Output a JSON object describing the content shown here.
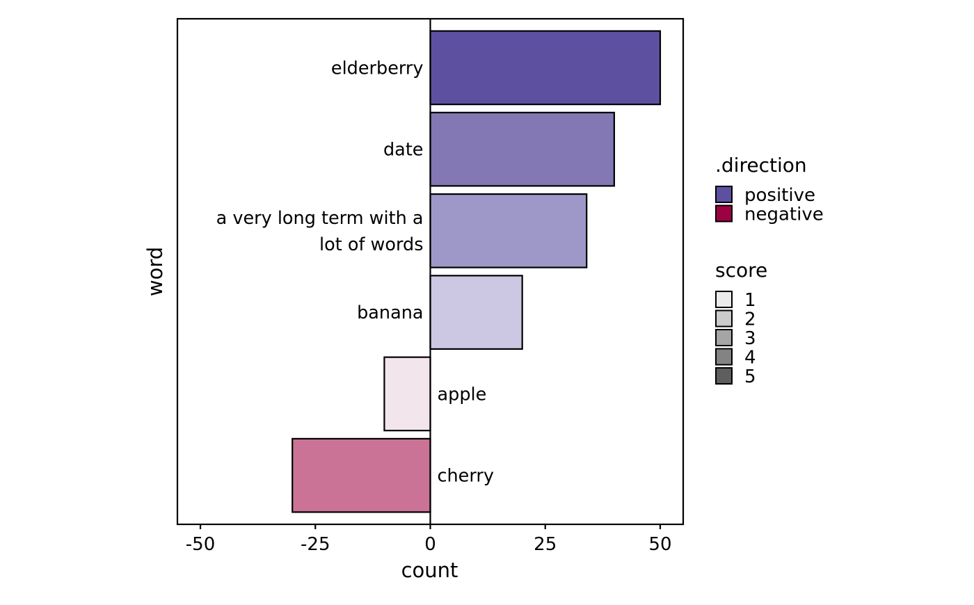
{
  "chart_data": {
    "type": "bar",
    "orientation": "horizontal",
    "xlabel": "count",
    "ylabel": "word",
    "xlim": [
      -55,
      55
    ],
    "xticks": [
      -50,
      -25,
      0,
      25,
      50
    ],
    "xtick_labels": [
      "-50",
      "-25",
      "0",
      "25",
      "50"
    ],
    "grid": false,
    "categories": [
      {
        "label": "elderberry",
        "value": 50,
        "direction": "positive",
        "score": 5
      },
      {
        "label": "date",
        "value": 40,
        "direction": "positive",
        "score": 4
      },
      {
        "label": "a very long term with a lot of words",
        "label_lines": [
          "a very long term with a",
          "lot of words"
        ],
        "value": 34,
        "direction": "positive",
        "score": 3
      },
      {
        "label": "banana",
        "value": 20,
        "direction": "positive",
        "score": 2
      },
      {
        "label": "apple",
        "value": -10,
        "direction": "negative",
        "score": 1
      },
      {
        "label": "cherry",
        "value": -30,
        "direction": "negative",
        "score": 3
      }
    ],
    "legend_placement": "right",
    "legends": [
      {
        "title": ".direction",
        "items": [
          {
            "label": "positive",
            "color": "#5e50a1"
          },
          {
            "label": "negative",
            "color": "#9e0142"
          }
        ]
      },
      {
        "title": "score",
        "items": [
          {
            "label": "1",
            "color": "#ebebeb"
          },
          {
            "label": "2",
            "color": "#cbcbcb"
          },
          {
            "label": "3",
            "color": "#a5a5a5"
          },
          {
            "label": "4",
            "color": "#838383"
          },
          {
            "label": "5",
            "color": "#5e5e5e"
          }
        ]
      }
    ],
    "bar_colors": {
      "elderberry": "#5e50a1",
      "date": "#8377b4",
      "a very long term with a lot of words": "#9e98c8",
      "banana": "#ccc7e3",
      "apple": "#f3e5ec",
      "cherry": "#cb7396"
    }
  }
}
